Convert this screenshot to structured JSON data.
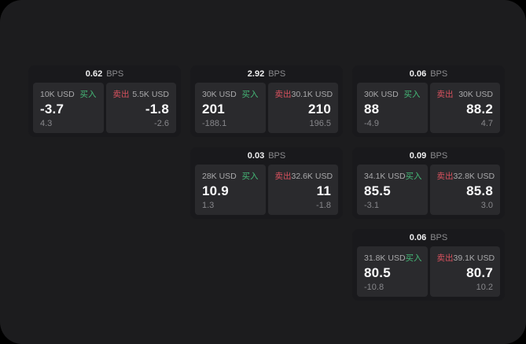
{
  "colors": {
    "buy": "#45b877",
    "sell": "#d8515e"
  },
  "unit_label": "BPS",
  "cards": [
    {
      "bps": "0.62",
      "unit": "BPS",
      "row": 1,
      "col": 1,
      "buy": {
        "notional": "10K USD",
        "label": "买入",
        "value": "-3.7",
        "sub": "4.3"
      },
      "sell": {
        "label": "卖出",
        "notional": "5.5K USD",
        "value": "-1.8",
        "sub": "-2.6"
      }
    },
    {
      "bps": "2.92",
      "unit": "BPS",
      "row": 1,
      "col": 2,
      "buy": {
        "notional": "30K USD",
        "label": "买入",
        "value": "201",
        "sub": "-188.1"
      },
      "sell": {
        "label": "卖出",
        "notional": "30.1K USD",
        "value": "210",
        "sub": "196.5"
      }
    },
    {
      "bps": "0.06",
      "unit": "BPS",
      "row": 1,
      "col": 3,
      "buy": {
        "notional": "30K USD",
        "label": "买入",
        "value": "88",
        "sub": "-4.9"
      },
      "sell": {
        "label": "卖出",
        "notional": "30K USD",
        "value": "88.2",
        "sub": "4.7"
      }
    },
    {
      "bps": "0.03",
      "unit": "BPS",
      "row": 2,
      "col": 2,
      "buy": {
        "notional": "28K USD",
        "label": "买入",
        "value": "10.9",
        "sub": "1.3"
      },
      "sell": {
        "label": "卖出",
        "notional": "32.6K USD",
        "value": "11",
        "sub": "-1.8"
      }
    },
    {
      "bps": "0.09",
      "unit": "BPS",
      "row": 2,
      "col": 3,
      "buy": {
        "notional": "34.1K USD",
        "label": "买入",
        "value": "85.5",
        "sub": "-3.1"
      },
      "sell": {
        "label": "卖出",
        "notional": "32.8K USD",
        "value": "85.8",
        "sub": "3.0"
      }
    },
    {
      "bps": "0.06",
      "unit": "BPS",
      "row": 3,
      "col": 3,
      "buy": {
        "notional": "31.8K USD",
        "label": "买入",
        "value": "80.5",
        "sub": "-10.8"
      },
      "sell": {
        "label": "卖出",
        "notional": "39.1K USD",
        "value": "80.7",
        "sub": "10.2"
      }
    }
  ]
}
